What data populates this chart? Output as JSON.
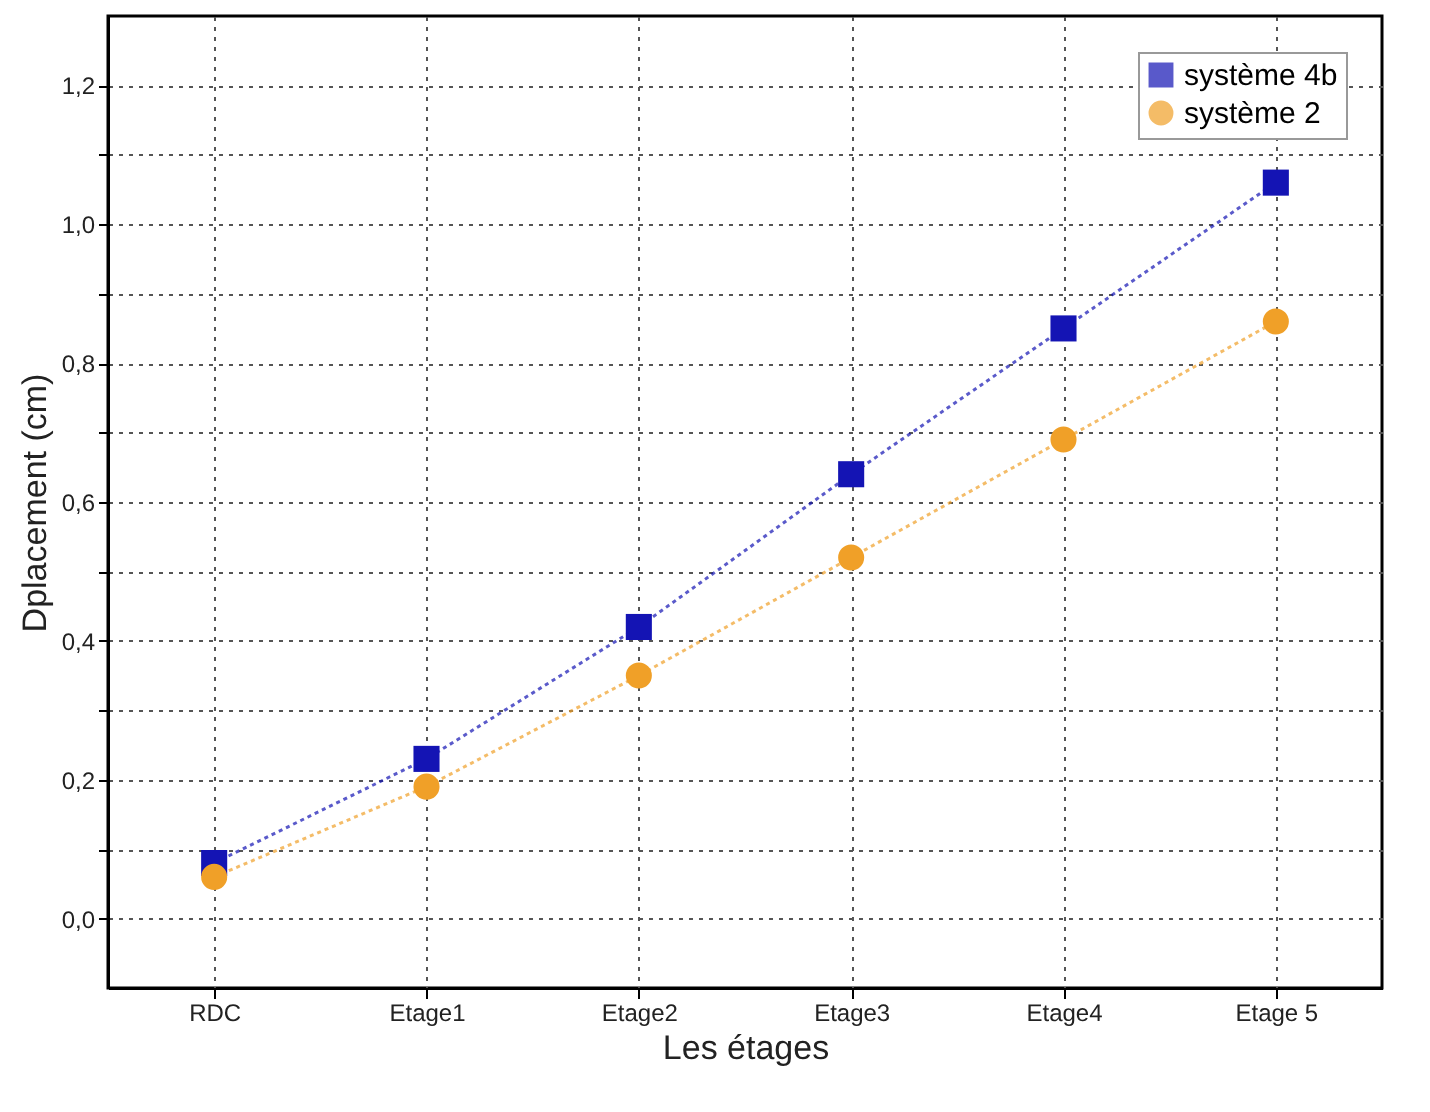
{
  "chart_data": {
    "type": "line",
    "xlabel": "Les étages",
    "ylabel": "Dplacement  (cm)",
    "categories": [
      "RDC",
      "Etage1",
      "Etage2",
      "Etage3",
      "Etage4",
      "Etage 5"
    ],
    "series": [
      {
        "name": "système 4b",
        "color": "#1414b4",
        "marker": "square",
        "values": [
          0.08,
          0.23,
          0.42,
          0.64,
          0.85,
          1.06
        ]
      },
      {
        "name": "système 2",
        "color": "#f0a028",
        "marker": "circle",
        "values": [
          0.06,
          0.19,
          0.35,
          0.52,
          0.69,
          0.86
        ]
      }
    ],
    "ylim": [
      -0.1,
      1.3
    ],
    "yticks": [
      {
        "value": 0,
        "label": "0,0"
      },
      {
        "value": 0.1,
        "label": null
      },
      {
        "value": 0.2,
        "label": "0,2"
      },
      {
        "value": 0.3,
        "label": null
      },
      {
        "value": 0.4,
        "label": "0,4"
      },
      {
        "value": 0.5,
        "label": null
      },
      {
        "value": 0.6,
        "label": "0,6"
      },
      {
        "value": 0.7,
        "label": null
      },
      {
        "value": 0.8,
        "label": "0,8"
      },
      {
        "value": 0.9,
        "label": null
      },
      {
        "value": 1.0,
        "label": "1,0"
      },
      {
        "value": 1.1,
        "label": null
      },
      {
        "value": 1.2,
        "label": "1,2"
      }
    ],
    "grid": true,
    "legend": "top right",
    "line_style": "dotted"
  }
}
